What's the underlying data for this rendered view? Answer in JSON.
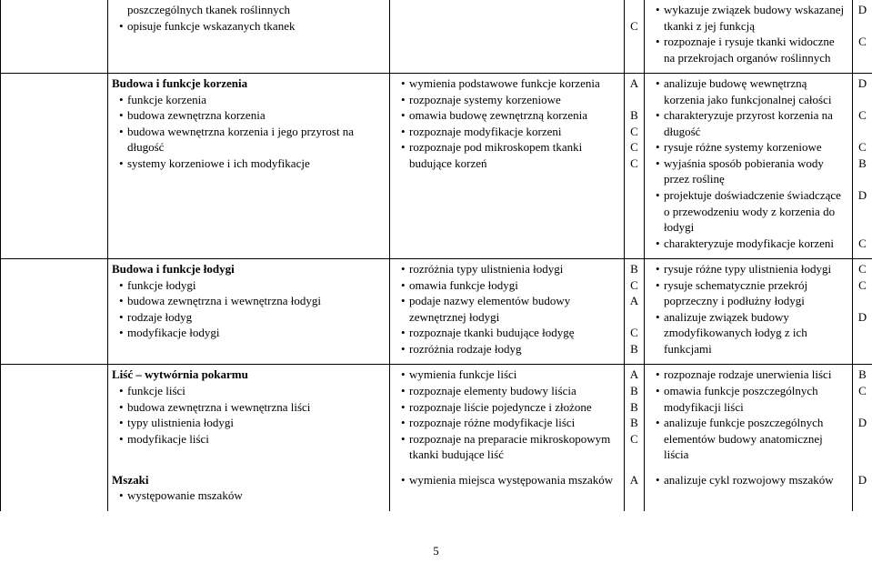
{
  "pageNumber": "5",
  "rows": [
    {
      "col1": "",
      "col2_items": [
        "poszczególnych tkanek roślinnych",
        "opisuje funkcje wskazanych tkanek"
      ],
      "col2_item_first_raw": true,
      "col4_lines": [
        "",
        "C"
      ],
      "col5_items": [
        "wykazuje związek budowy wskazanej tkanki z jej funkcją",
        "rozpoznaje i rysuje tkanki widoczne na przekrojach organów roślinnych"
      ],
      "col6_lines": [
        "D",
        "",
        "C"
      ]
    },
    {
      "col1": "",
      "col2_heading": "Budowa i funkcje korzenia",
      "col2_items": [
        "funkcje korzenia",
        "budowa zewnętrzna korzenia",
        "budowa wewnętrzna korzenia i jego przyrost na długość",
        "systemy korzeniowe i ich modyfikacje"
      ],
      "col3_items": [
        "wymienia podstawowe funkcje korzenia",
        "rozpoznaje systemy korzeniowe",
        "omawia budowę zewnętrzną korzenia",
        "rozpoznaje modyfikacje korzeni",
        "rozpoznaje pod mikroskopem tkanki budujące korzeń"
      ],
      "col4_lines": [
        "A",
        "",
        "B",
        "C",
        "C",
        "C"
      ],
      "col5_items": [
        "analizuje budowę wewnętrzną korzenia jako funkcjonalnej całości",
        "charakteryzuje przyrost korzenia na długość",
        "rysuje różne systemy korzeniowe",
        "wyjaśnia sposób pobierania wody przez roślinę",
        "projektuje doświadczenie świadczące o przewodzeniu wody z korzenia do łodygi",
        "charakteryzuje modyfikacje korzeni"
      ],
      "col6_lines": [
        "D",
        "",
        "C",
        "",
        "C",
        "B",
        "",
        "D",
        "",
        "",
        "C"
      ]
    },
    {
      "col1": "",
      "col2_heading": "Budowa i funkcje łodygi",
      "col2_items": [
        "funkcje łodygi",
        "budowa zewnętrzna i wewnętrzna łodygi",
        "rodzaje łodyg",
        "modyfikacje łodygi"
      ],
      "col3_items": [
        "rozróżnia typy ulistnienia łodygi",
        "omawia funkcje łodygi",
        "podaje nazwy elementów budowy zewnętrznej łodygi",
        "rozpoznaje tkanki budujące łodygę",
        "rozróżnia rodzaje łodyg"
      ],
      "col4_lines": [
        "B",
        "C",
        "A",
        "",
        "C",
        "B"
      ],
      "col5_items": [
        "rysuje różne typy ulistnienia łodygi",
        "rysuje schematycznie przekrój poprzeczny i podłużny łodygi",
        "analizuje związek budowy zmodyfikowanych łodyg z ich funkcjami"
      ],
      "col6_lines": [
        "C",
        "C",
        "",
        "D"
      ]
    },
    {
      "col1": "",
      "col2_heading": "Liść – wytwórnia pokarmu",
      "col2_items": [
        "funkcje liści",
        "budowa zewnętrzna i wewnętrzna liści",
        "typy ulistnienia łodygi",
        "modyfikacje liści"
      ],
      "col3_items": [
        "wymienia funkcje liści",
        "rozpoznaje elementy budowy liścia",
        "rozpoznaje liście pojedyncze i złożone",
        "rozpoznaje różne modyfikacje liści",
        "rozpoznaje na preparacie mikroskopowym tkanki budujące liść"
      ],
      "col4_lines": [
        "A",
        "B",
        "B",
        "B",
        "C"
      ],
      "col5_items": [
        "rozpoznaje rodzaje unerwienia liści",
        "omawia funkcje poszczególnych modyfikacji liści",
        "analizuje funkcje poszczególnych elementów budowy anatomicznej liścia"
      ],
      "col6_lines": [
        "B",
        "C",
        "",
        "D"
      ]
    },
    {
      "col1": "",
      "col2_heading": "Mszaki",
      "col2_items": [
        "występowanie mszaków"
      ],
      "col3_items": [
        "wymienia miejsca występowania mszaków"
      ],
      "col4_lines": [
        "A"
      ],
      "col5_items": [
        "analizuje cykl rozwojowy mszaków"
      ],
      "col6_lines": [
        "D"
      ]
    }
  ]
}
